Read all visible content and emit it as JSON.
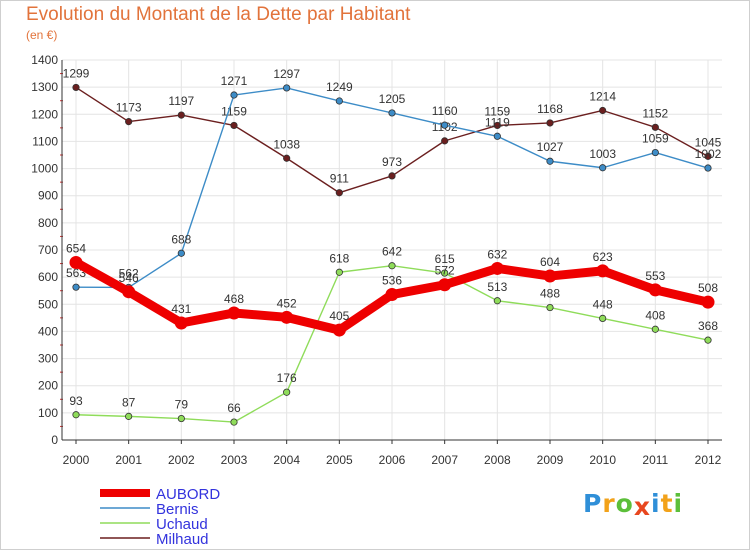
{
  "header": {
    "title": "Evolution du Montant de la Dette par Habitant",
    "unit": "(en €)"
  },
  "brand": {
    "letters": [
      "P",
      "r",
      "o",
      "x",
      "i",
      "t",
      "i"
    ],
    "colors": [
      "#2f8fd8",
      "#f2a21a",
      "#5cbf3a",
      "#e8471f",
      "#2f8fd8",
      "#f2a21a",
      "#5cbf3a"
    ]
  },
  "chart_data": {
    "type": "line",
    "title": "Evolution du Montant de la Dette par Habitant",
    "ylabel": "(en €)",
    "xlabel": "",
    "categories": [
      "2000",
      "2001",
      "2002",
      "2003",
      "2004",
      "2005",
      "2006",
      "2007",
      "2008",
      "2009",
      "2010",
      "2011",
      "2012"
    ],
    "ylim": [
      0,
      1400
    ],
    "yticks": [
      0,
      100,
      200,
      300,
      400,
      500,
      600,
      700,
      800,
      900,
      1000,
      1100,
      1200,
      1300,
      1400
    ],
    "grid": true,
    "legend_position": "bottom-left",
    "series": [
      {
        "name": "Milhaud",
        "color": "#6b1f1f",
        "values": [
          1299,
          1173,
          1197,
          1159,
          1038,
          911,
          973,
          1102,
          1159,
          1168,
          1214,
          1152,
          1045
        ]
      },
      {
        "name": "Bernis",
        "color": "#3d8cc7",
        "values": [
          563,
          562,
          688,
          1271,
          1297,
          1249,
          1205,
          1160,
          1119,
          1027,
          1003,
          1059,
          1002
        ]
      },
      {
        "name": "Uchaud",
        "color": "#8fdc5a",
        "values": [
          93,
          87,
          79,
          66,
          176,
          618,
          642,
          615,
          513,
          488,
          448,
          408,
          368
        ]
      },
      {
        "name": "AUBORD",
        "color": "#ee0000",
        "values": [
          654,
          546,
          431,
          468,
          452,
          405,
          536,
          572,
          632,
          604,
          623,
          553,
          508
        ]
      }
    ],
    "legend": [
      "AUBORD",
      "Bernis",
      "Uchaud",
      "Milhaud"
    ]
  }
}
